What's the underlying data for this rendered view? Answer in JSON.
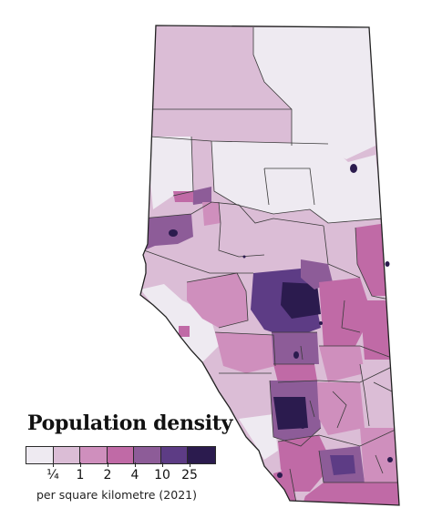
{
  "legend": {
    "title": "Population density",
    "caption": "per square kilometre (2021)",
    "classes": [
      {
        "color": "#eeeaf1"
      },
      {
        "color": "#dbbdd6"
      },
      {
        "color": "#cf8fbd"
      },
      {
        "color": "#c06aa6"
      },
      {
        "color": "#8d5c98"
      },
      {
        "color": "#5d3c85"
      },
      {
        "color": "#2b1b4e"
      }
    ],
    "breaks": [
      "¼",
      "1",
      "2",
      "4",
      "10",
      "25"
    ]
  },
  "map": {
    "border_color": "#3a3a3a",
    "water_color": "#2b1b4e"
  }
}
